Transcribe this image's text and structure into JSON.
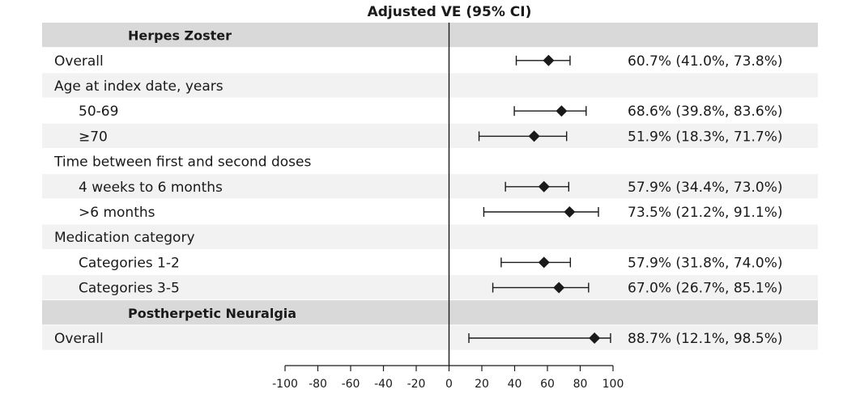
{
  "chart_data": {
    "type": "forest",
    "title": "Adjusted VE (95% CI)",
    "xlim": [
      -100,
      100
    ],
    "xticks": [
      -100,
      -80,
      -60,
      -40,
      -20,
      0,
      20,
      40,
      60,
      80,
      100
    ],
    "reference_line": 0,
    "rows": [
      {
        "label": "Herpes Zoster",
        "kind": "section"
      },
      {
        "label": "Overall",
        "kind": "estimate",
        "indent": 0,
        "estimate": 60.7,
        "lower": 41.0,
        "upper": 73.8,
        "text": "60.7% (41.0%, 73.8%)"
      },
      {
        "label": "Age at index date, years",
        "kind": "group"
      },
      {
        "label": "50-69",
        "kind": "estimate",
        "indent": 1,
        "estimate": 68.6,
        "lower": 39.8,
        "upper": 83.6,
        "text": "68.6% (39.8%, 83.6%)"
      },
      {
        "label": "≥70",
        "kind": "estimate",
        "indent": 1,
        "estimate": 51.9,
        "lower": 18.3,
        "upper": 71.7,
        "text": "51.9% (18.3%, 71.7%)"
      },
      {
        "label": "Time between first and second doses",
        "kind": "group"
      },
      {
        "label": "4 weeks to 6 months",
        "kind": "estimate",
        "indent": 1,
        "estimate": 57.9,
        "lower": 34.4,
        "upper": 73.0,
        "text": "57.9% (34.4%, 73.0%)"
      },
      {
        "label": ">6 months",
        "kind": "estimate",
        "indent": 1,
        "estimate": 73.5,
        "lower": 21.2,
        "upper": 91.1,
        "text": "73.5% (21.2%, 91.1%)"
      },
      {
        "label": "Medication category",
        "kind": "group"
      },
      {
        "label": "Categories 1-2",
        "kind": "estimate",
        "indent": 1,
        "estimate": 57.9,
        "lower": 31.8,
        "upper": 74.0,
        "text": "57.9% (31.8%, 74.0%)"
      },
      {
        "label": "Categories 3-5",
        "kind": "estimate",
        "indent": 1,
        "estimate": 67.0,
        "lower": 26.7,
        "upper": 85.1,
        "text": "67.0% (26.7%, 85.1%)"
      },
      {
        "label": "Postherpetic Neuralgia",
        "kind": "section"
      },
      {
        "label": "Overall",
        "kind": "estimate",
        "indent": 0,
        "estimate": 88.7,
        "lower": 12.1,
        "upper": 98.5,
        "text": "88.7% (12.1%, 98.5%)"
      }
    ],
    "colors": {
      "section_band": "#d9d9d9",
      "alt_band": "#f2f2f2",
      "marker": "#1a1a1a",
      "line": "#1a1a1a"
    }
  }
}
